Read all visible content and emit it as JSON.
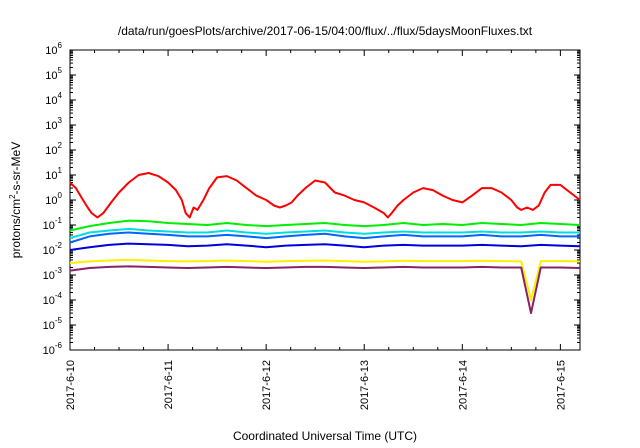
{
  "chart_data": {
    "type": "line",
    "title": "/data/run/goesPlots/archive/2017-06-15/04:00/flux/../flux/5daysMoonFluxes.txt",
    "xlabel": "Coordinated Universal Time (UTC)",
    "ylabel": {
      "pre": "protons/cm",
      "sup": "2",
      "post": "-s-sr-MeV"
    },
    "x_ticks": [
      "2017-6-10",
      "2017-6-11",
      "2017-6-12",
      "2017-6-13",
      "2017-6-14",
      "2017-6-15"
    ],
    "xlim_days": [
      0,
      5.2
    ],
    "y_ticks": [
      "-6",
      "-5",
      "-4",
      "-3",
      "-2",
      "-1",
      "0",
      "1",
      "2",
      "3",
      "4",
      "5",
      "6"
    ],
    "y_tick_base": "10",
    "y_scale": "log",
    "ylim": [
      1e-06,
      1000000.0
    ],
    "grid": false,
    "legend": "none",
    "series": [
      {
        "color": "#ff0000",
        "x_days": [
          0,
          0.06,
          0.12,
          0.18,
          0.22,
          0.28,
          0.34,
          0.42,
          0.5,
          0.6,
          0.7,
          0.8,
          0.9,
          1.0,
          1.08,
          1.14,
          1.18,
          1.22,
          1.26,
          1.3,
          1.36,
          1.42,
          1.5,
          1.6,
          1.7,
          1.8,
          1.9,
          2.0,
          2.08,
          2.14,
          2.2,
          2.26,
          2.32,
          2.4,
          2.5,
          2.6,
          2.7,
          2.8,
          2.9,
          3.0,
          3.1,
          3.2,
          3.24,
          3.28,
          3.34,
          3.4,
          3.5,
          3.6,
          3.7,
          3.8,
          3.9,
          4.0,
          4.1,
          4.2,
          4.3,
          4.4,
          4.5,
          4.56,
          4.6,
          4.66,
          4.72,
          4.78,
          4.84,
          4.9,
          5.0,
          5.1,
          5.2
        ],
        "values": [
          5,
          3,
          1.2,
          0.5,
          0.3,
          0.2,
          0.3,
          0.8,
          2,
          5,
          10,
          12,
          9,
          5,
          2.5,
          1,
          0.3,
          0.2,
          0.5,
          0.4,
          1,
          3,
          8,
          9,
          6,
          3,
          1.5,
          1,
          0.6,
          0.5,
          0.6,
          0.8,
          1.5,
          3,
          6,
          5,
          2,
          1.5,
          1,
          0.8,
          0.5,
          0.3,
          0.2,
          0.3,
          0.6,
          1,
          2,
          3,
          2.5,
          1.5,
          1,
          0.8,
          1.5,
          3,
          3,
          2,
          1,
          0.5,
          0.4,
          0.5,
          0.4,
          0.6,
          2,
          4,
          4,
          2,
          1
        ]
      },
      {
        "color": "#00ee00",
        "x_days": [
          0,
          0.2,
          0.4,
          0.6,
          0.8,
          1.0,
          1.2,
          1.4,
          1.6,
          1.8,
          2.0,
          2.2,
          2.4,
          2.6,
          2.8,
          3.0,
          3.2,
          3.4,
          3.6,
          3.8,
          4.0,
          4.2,
          4.4,
          4.6,
          4.8,
          5.0,
          5.2
        ],
        "values": [
          0.06,
          0.09,
          0.12,
          0.15,
          0.14,
          0.12,
          0.11,
          0.1,
          0.12,
          0.1,
          0.09,
          0.1,
          0.11,
          0.12,
          0.1,
          0.09,
          0.1,
          0.12,
          0.1,
          0.11,
          0.1,
          0.12,
          0.11,
          0.1,
          0.12,
          0.11,
          0.1
        ]
      },
      {
        "color": "#00dddd",
        "x_days": [
          0,
          0.2,
          0.4,
          0.6,
          0.8,
          1.0,
          1.2,
          1.4,
          1.6,
          1.8,
          2.0,
          2.2,
          2.4,
          2.6,
          2.8,
          3.0,
          3.2,
          3.4,
          3.6,
          3.8,
          4.0,
          4.2,
          4.4,
          4.6,
          4.8,
          5.0,
          5.2
        ],
        "values": [
          0.03,
          0.05,
          0.06,
          0.07,
          0.06,
          0.055,
          0.05,
          0.05,
          0.06,
          0.05,
          0.045,
          0.05,
          0.055,
          0.06,
          0.05,
          0.045,
          0.05,
          0.055,
          0.05,
          0.05,
          0.05,
          0.055,
          0.05,
          0.05,
          0.055,
          0.05,
          0.05
        ]
      },
      {
        "color": "#0066ff",
        "x_days": [
          0,
          0.2,
          0.4,
          0.6,
          0.8,
          1.0,
          1.2,
          1.4,
          1.6,
          1.8,
          2.0,
          2.2,
          2.4,
          2.6,
          2.8,
          3.0,
          3.2,
          3.4,
          3.6,
          3.8,
          4.0,
          4.2,
          4.4,
          4.6,
          4.8,
          5.0,
          5.2
        ],
        "values": [
          0.02,
          0.035,
          0.045,
          0.05,
          0.045,
          0.04,
          0.035,
          0.035,
          0.04,
          0.035,
          0.03,
          0.035,
          0.04,
          0.045,
          0.035,
          0.03,
          0.035,
          0.04,
          0.035,
          0.035,
          0.035,
          0.04,
          0.035,
          0.035,
          0.04,
          0.035,
          0.035
        ]
      },
      {
        "color": "#0000dd",
        "x_days": [
          0,
          0.2,
          0.4,
          0.6,
          0.8,
          1.0,
          1.2,
          1.4,
          1.6,
          1.8,
          2.0,
          2.2,
          2.4,
          2.6,
          2.8,
          3.0,
          3.2,
          3.4,
          3.6,
          3.8,
          4.0,
          4.2,
          4.4,
          4.6,
          4.8,
          5.0,
          5.2
        ],
        "values": [
          0.01,
          0.013,
          0.016,
          0.018,
          0.017,
          0.016,
          0.014,
          0.015,
          0.017,
          0.015,
          0.013,
          0.015,
          0.016,
          0.017,
          0.015,
          0.013,
          0.015,
          0.016,
          0.015,
          0.015,
          0.015,
          0.016,
          0.015,
          0.014,
          0.016,
          0.015,
          0.014
        ]
      },
      {
        "color": "#ffee00",
        "x_days": [
          0,
          0.2,
          0.4,
          0.6,
          0.8,
          1.0,
          1.2,
          1.4,
          1.6,
          1.8,
          2.0,
          2.2,
          2.4,
          2.6,
          2.8,
          3.0,
          3.2,
          3.4,
          3.6,
          3.8,
          4.0,
          4.2,
          4.4,
          4.6,
          4.7,
          4.8,
          5.0,
          5.2
        ],
        "values": [
          0.003,
          0.0035,
          0.0038,
          0.004,
          0.0038,
          0.0036,
          0.0035,
          0.0036,
          0.0038,
          0.0036,
          0.0034,
          0.0036,
          0.0037,
          0.0038,
          0.0036,
          0.0034,
          0.0035,
          0.0037,
          0.0036,
          0.0036,
          0.0036,
          0.0037,
          0.0036,
          0.0035,
          0.0001,
          0.0036,
          0.0036,
          0.0035
        ]
      },
      {
        "color": "#882266",
        "x_days": [
          0,
          0.2,
          0.4,
          0.6,
          0.8,
          1.0,
          1.2,
          1.4,
          1.6,
          1.8,
          2.0,
          2.2,
          2.4,
          2.6,
          2.8,
          3.0,
          3.2,
          3.4,
          3.6,
          3.8,
          4.0,
          4.2,
          4.4,
          4.6,
          4.7,
          4.8,
          5.0,
          5.2
        ],
        "values": [
          0.0015,
          0.0019,
          0.0021,
          0.0022,
          0.0021,
          0.002,
          0.0019,
          0.002,
          0.0021,
          0.002,
          0.0019,
          0.002,
          0.0021,
          0.0021,
          0.002,
          0.0019,
          0.002,
          0.0021,
          0.002,
          0.002,
          0.002,
          0.0021,
          0.002,
          0.002,
          3e-05,
          0.002,
          0.002,
          0.0019
        ]
      }
    ]
  }
}
